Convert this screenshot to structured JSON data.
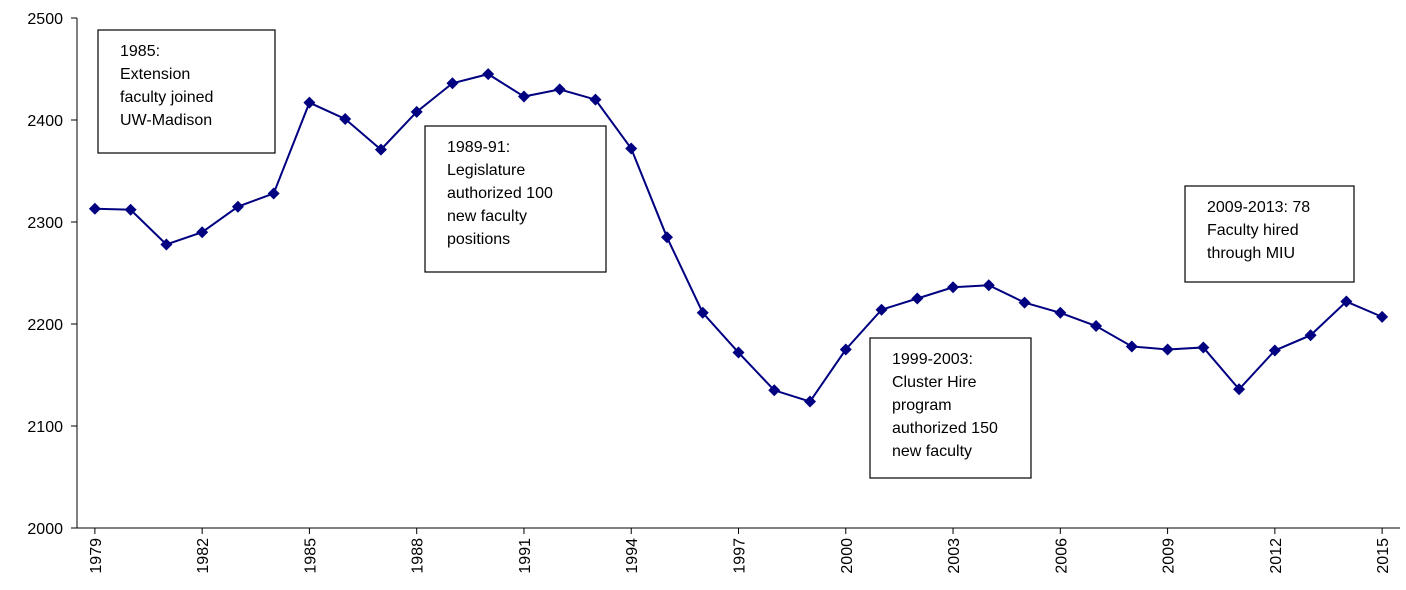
{
  "chart_data": {
    "type": "line",
    "x": [
      1979,
      1980,
      1981,
      1982,
      1983,
      1984,
      1985,
      1986,
      1987,
      1988,
      1989,
      1990,
      1991,
      1992,
      1993,
      1994,
      1995,
      1996,
      1997,
      1998,
      1999,
      2000,
      2001,
      2002,
      2003,
      2004,
      2005,
      2006,
      2007,
      2008,
      2009,
      2010,
      2011,
      2012,
      2013,
      2014,
      2015
    ],
    "series": [
      {
        "name": null,
        "color": "#000080",
        "values": [
          2313,
          2312,
          2278,
          2290,
          2315,
          2328,
          2417,
          2401,
          2371,
          2408,
          2436,
          2445,
          2423,
          2430,
          2420,
          2372,
          2285,
          2211,
          2172,
          2135,
          2124,
          2175,
          2214,
          2225,
          2236,
          2238,
          2221,
          2211,
          2198,
          2178,
          2175,
          2177,
          2136,
          2174,
          2189,
          2222,
          2207
        ]
      }
    ],
    "xlim": [
      1978.5,
      2015.5
    ],
    "xticks": [
      1979,
      1982,
      1985,
      1988,
      1991,
      1994,
      1997,
      2000,
      2003,
      2006,
      2009,
      2012,
      2015
    ],
    "ylim": [
      2000,
      2500
    ],
    "yticks": [
      2000,
      2100,
      2200,
      2300,
      2400,
      2500
    ],
    "annotations": [
      {
        "lines": [
          "1985:",
          "Extension",
          "faculty joined",
          "UW-Madison"
        ]
      },
      {
        "lines": [
          "1989-91:",
          "Legislature",
          "authorized 100",
          "new faculty",
          "positions"
        ]
      },
      {
        "lines": [
          "1999-2003:",
          "Cluster Hire",
          "program",
          "authorized 150",
          "new faculty"
        ]
      },
      {
        "lines": [
          "2009-2013: 78",
          "Faculty hired",
          "through MIU"
        ]
      }
    ]
  }
}
